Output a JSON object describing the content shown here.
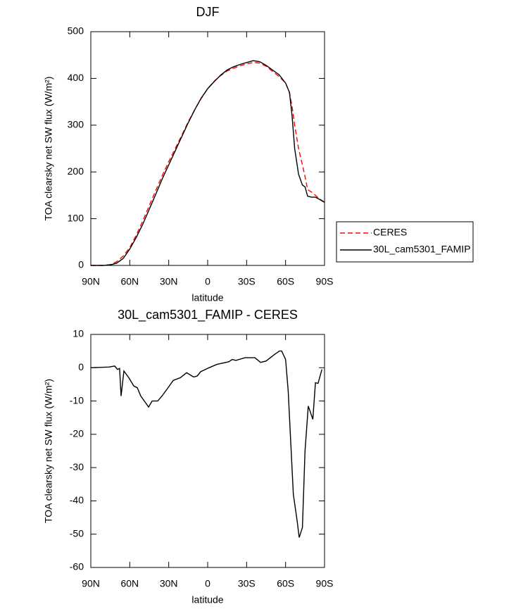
{
  "chart_data": [
    {
      "type": "line",
      "title": "DJF",
      "xlabel": "latitude",
      "ylabel": "TOA clearsky net SW flux (W/m²)",
      "x": [
        90,
        85,
        80,
        75,
        70,
        65,
        60,
        55,
        50,
        45,
        40,
        35,
        30,
        25,
        20,
        15,
        10,
        5,
        0,
        -5,
        -10,
        -15,
        -20,
        -25,
        -30,
        -35,
        -40,
        -45,
        -50,
        -55,
        -60,
        -63,
        -65,
        -67,
        -70,
        -73,
        -75,
        -77,
        -80,
        -83,
        -85,
        -90
      ],
      "series": [
        {
          "name": "CERES",
          "color": "#ff0000",
          "linestyle": "dashed",
          "values": [
            0,
            0,
            0,
            2,
            8,
            20,
            38,
            65,
            95,
            128,
            160,
            192,
            222,
            250,
            278,
            307,
            333,
            357,
            378,
            394,
            406,
            416,
            422,
            427,
            431,
            434,
            433,
            426,
            415,
            404,
            390,
            370,
            340,
            300,
            250,
            215,
            190,
            162,
            157,
            150,
            145,
            135
          ]
        },
        {
          "name": "30L_cam5301_FAMIP",
          "color": "#000000",
          "linestyle": "solid",
          "values": [
            0,
            0,
            0,
            1,
            5,
            15,
            35,
            60,
            88,
            120,
            152,
            185,
            215,
            245,
            275,
            305,
            333,
            358,
            378,
            393,
            407,
            418,
            425,
            430,
            434,
            438,
            436,
            428,
            418,
            408,
            390,
            370,
            320,
            250,
            195,
            172,
            168,
            148,
            146,
            146,
            143,
            135
          ]
        }
      ],
      "xlim": [
        90,
        -90
      ],
      "xticks": [
        {
          "value": 90,
          "label": "90N"
        },
        {
          "value": 60,
          "label": "60N"
        },
        {
          "value": 30,
          "label": "30N"
        },
        0,
        {
          "value": -30,
          "label": "30S"
        },
        {
          "value": -60,
          "label": "60S"
        },
        {
          "value": -90,
          "label": "90S"
        }
      ],
      "ylim": [
        0,
        500
      ],
      "yticks": [
        0,
        100,
        200,
        300,
        400,
        500
      ],
      "grid": false,
      "legend": "outside-right"
    },
    {
      "type": "line",
      "title": "30L_cam5301_FAMIP - CERES",
      "xlabel": "latitude",
      "ylabel": "TOA clearsky net SW flux (W/m²)",
      "x": [
        90,
        76,
        71.6,
        69.4,
        67.8,
        66.7,
        64.5,
        60.7,
        56.9,
        54.2,
        51.5,
        48.8,
        45.5,
        42.8,
        38.5,
        35.2,
        31.4,
        26.5,
        21.1,
        16.2,
        10.8,
        8.1,
        5.4,
        -1.1,
        -7.1,
        -16.3,
        -19,
        -21.7,
        -28.8,
        -36.4,
        -40.7,
        -45,
        -51.5,
        -55.3,
        -57,
        -60,
        -62,
        -66,
        -68.9,
        -70.5,
        -73,
        -75,
        -77.5,
        -81,
        -83,
        -85,
        -88
      ],
      "series": [
        {
          "name": "30L_cam5301_FAMIP - CERES",
          "color": "#000000",
          "linestyle": "solid",
          "values": [
            0,
            0.2,
            0.5,
            -0.5,
            -0.2,
            -8.5,
            -1,
            -3,
            -5.5,
            -6,
            -8.5,
            -10,
            -11.8,
            -10,
            -10,
            -8.5,
            -6.5,
            -3.8,
            -3,
            -1.5,
            -2.8,
            -2.5,
            -1.2,
            0,
            1,
            1.8,
            2.5,
            2.2,
            3,
            3,
            1.6,
            2,
            4,
            5,
            5,
            2.5,
            -7,
            -38,
            -46,
            -51,
            -48,
            -25,
            -11.5,
            -15.5,
            -4.5,
            -4.7,
            -0.5
          ]
        }
      ],
      "xlim": [
        90,
        -90
      ],
      "xticks": [
        {
          "value": 90,
          "label": "90N"
        },
        {
          "value": 60,
          "label": "60N"
        },
        {
          "value": 30,
          "label": "30N"
        },
        0,
        {
          "value": -30,
          "label": "30S"
        },
        {
          "value": -60,
          "label": "60S"
        },
        {
          "value": -90,
          "label": "90S"
        }
      ],
      "ylim": [
        -60,
        10
      ],
      "yticks": [
        -60,
        -50,
        -40,
        -30,
        -20,
        -10,
        0,
        10
      ],
      "grid": false
    }
  ]
}
